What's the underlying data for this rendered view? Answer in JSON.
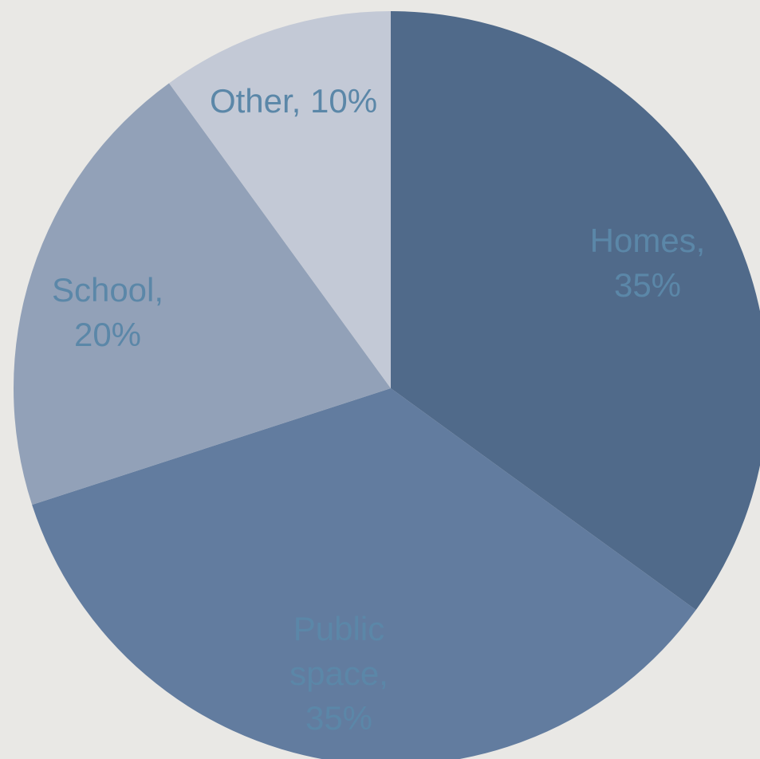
{
  "chart_data": {
    "type": "pie",
    "values": [
      35,
      35,
      20,
      10
    ],
    "value_labels": [
      "Homes, 35%",
      "Public space, 35%",
      "School, 20%",
      "Other, 10%"
    ],
    "colors": [
      "#506a8a",
      "#627c9f",
      "#92a1b8",
      "#c3c9d6"
    ],
    "label_color": "#5b87a8",
    "start_angle": 90,
    "direction": "clockwise"
  }
}
